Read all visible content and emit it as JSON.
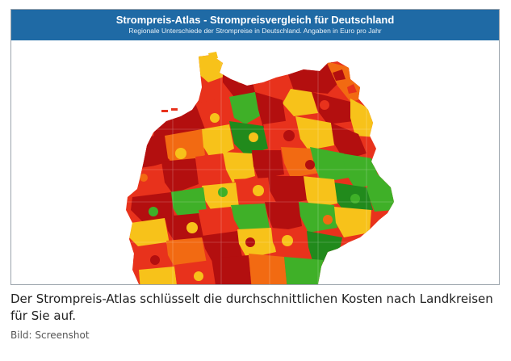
{
  "map": {
    "title": "Strompreis-Atlas - Strompreisvergleich für Deutschland",
    "subtitle": "Regionale Unterschiede der Strompreise in Deutschland. Angaben in Euro pro Jahr",
    "colors": {
      "header_bg": "#1f6aa5",
      "darkred": "#b30f0f",
      "red": "#e8321c",
      "orange": "#f26a12",
      "yellow": "#f7c21a",
      "green": "#3fb028",
      "darkgreen": "#218a1c"
    }
  },
  "caption": {
    "text": "Der Strompreis-Atlas schlüsselt die durchschnittlichen Kosten nach Landkreisen für Sie auf.",
    "credit": "Bild: Screenshot"
  }
}
